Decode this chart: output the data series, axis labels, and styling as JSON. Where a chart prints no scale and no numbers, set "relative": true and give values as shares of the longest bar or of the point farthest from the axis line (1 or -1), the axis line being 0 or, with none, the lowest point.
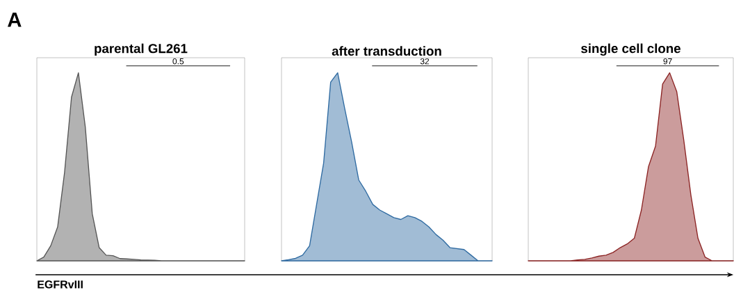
{
  "chart_data": [
    {
      "type": "area",
      "relative": true,
      "title": "parental GL261",
      "xlabel": "EGFRvIII",
      "annotations": [
        "A",
        "0.5"
      ],
      "categories": [
        null,
        null,
        null,
        null,
        null,
        null,
        null,
        null,
        null,
        null,
        null,
        null,
        null,
        null,
        null,
        null,
        null,
        null,
        null,
        null,
        null,
        null,
        null,
        null,
        null,
        null,
        null,
        null,
        null,
        null,
        null
      ],
      "series": [
        {
          "color": "#555555",
          "values": [
            0,
            0.02,
            0.08,
            0.18,
            0.47,
            0.87,
            1.0,
            0.71,
            0.25,
            0.07,
            0.03,
            0.027,
            0.012,
            0.01,
            0.008,
            0.005,
            0.004,
            0.003,
            0,
            0,
            0,
            0,
            0,
            0,
            0,
            0,
            0,
            0,
            0,
            0,
            0
          ]
        }
      ]
    },
    {
      "type": "area",
      "relative": true,
      "title": "after transduction",
      "annotations": [
        "32"
      ],
      "categories": [
        null,
        null,
        null,
        null,
        null,
        null,
        null,
        null,
        null,
        null,
        null,
        null,
        null,
        null,
        null,
        null,
        null,
        null,
        null,
        null,
        null,
        null,
        null,
        null,
        null,
        null,
        null,
        null,
        null,
        null,
        null
      ],
      "series": [
        {
          "color": "#2e6aa1",
          "values": [
            0,
            0.006,
            0.013,
            0.03,
            0.08,
            0.3,
            0.52,
            0.95,
            1.0,
            0.81,
            0.63,
            0.43,
            0.37,
            0.3,
            0.27,
            0.25,
            0.23,
            0.22,
            0.24,
            0.23,
            0.21,
            0.18,
            0.14,
            0.11,
            0.07,
            0.065,
            0.06,
            0.03,
            0,
            0,
            0
          ]
        }
      ]
    },
    {
      "type": "area",
      "relative": true,
      "title": "single cell clone",
      "annotations": [
        "97"
      ],
      "categories": [
        null,
        null,
        null,
        null,
        null,
        null,
        null,
        null,
        null,
        null,
        null,
        null,
        null,
        null,
        null,
        null,
        null,
        null,
        null,
        null,
        null,
        null,
        null,
        null,
        null,
        null,
        null,
        null,
        null,
        null
      ],
      "series": [
        {
          "color": "#8b2323",
          "values": [
            0,
            0,
            0,
            0,
            0,
            0,
            0,
            0.005,
            0.008,
            0.015,
            0.025,
            0.03,
            0.045,
            0.07,
            0.09,
            0.12,
            0.27,
            0.5,
            0.61,
            0.94,
            1.0,
            0.9,
            0.64,
            0.35,
            0.12,
            0.02,
            0,
            0,
            0,
            0
          ]
        }
      ]
    }
  ]
}
